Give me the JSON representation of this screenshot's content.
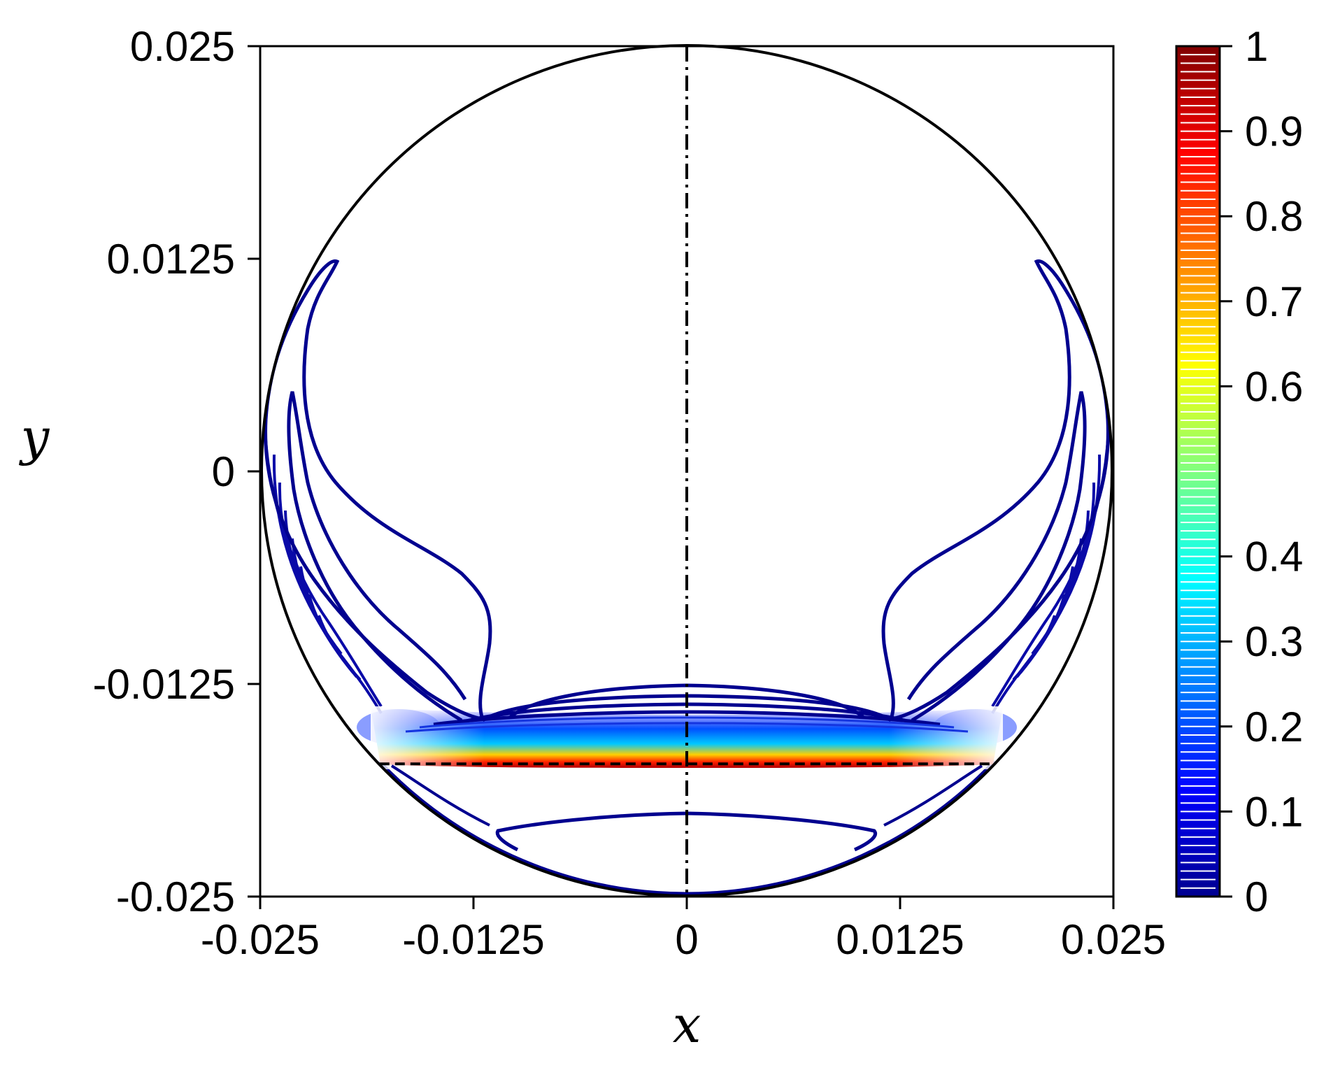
{
  "chart_data": {
    "type": "contour",
    "xlabel": "x",
    "ylabel": "y",
    "xlim": [
      -0.025,
      0.025
    ],
    "ylim": [
      -0.025,
      0.025
    ],
    "x_ticks": [
      "-0.025",
      "-0.0125",
      "0",
      "0.0125",
      "0.025"
    ],
    "x_tick_values": [
      -0.025,
      -0.0125,
      0,
      0.0125,
      0.025
    ],
    "y_ticks": [
      "0.025",
      "0.0125",
      "0",
      "-0.0125",
      "-0.025"
    ],
    "y_tick_values": [
      0.025,
      0.0125,
      0,
      -0.0125,
      -0.025
    ],
    "colorbar": {
      "range": [
        0,
        1
      ],
      "ticks": [
        "1",
        "0.9",
        "0.8",
        "0.7",
        "0.6",
        "0.4",
        "0.3",
        "0.2",
        "0.1",
        "0"
      ],
      "tick_values": [
        1,
        0.9,
        0.8,
        0.7,
        0.6,
        0.4,
        0.3,
        0.2,
        0.1,
        0
      ],
      "colormap": "jet"
    },
    "domain": {
      "shape": "circle",
      "center": [
        0,
        0
      ],
      "radius": 0.025
    },
    "reference_lines": [
      {
        "style": "dash-dot",
        "orientation": "vertical",
        "x": 0
      },
      {
        "style": "dashed",
        "orientation": "horizontal",
        "y": -0.0172,
        "x_range": [
          -0.018,
          0.018
        ]
      }
    ],
    "contour_levels_count": 100,
    "peak_region": {
      "y": -0.0172,
      "x_range": [
        -0.013,
        0.013
      ],
      "value": 1
    },
    "grid": false
  },
  "colors": {
    "contour_outer": "#00008f",
    "axis": "#000000",
    "dashed_line": "#000000"
  }
}
